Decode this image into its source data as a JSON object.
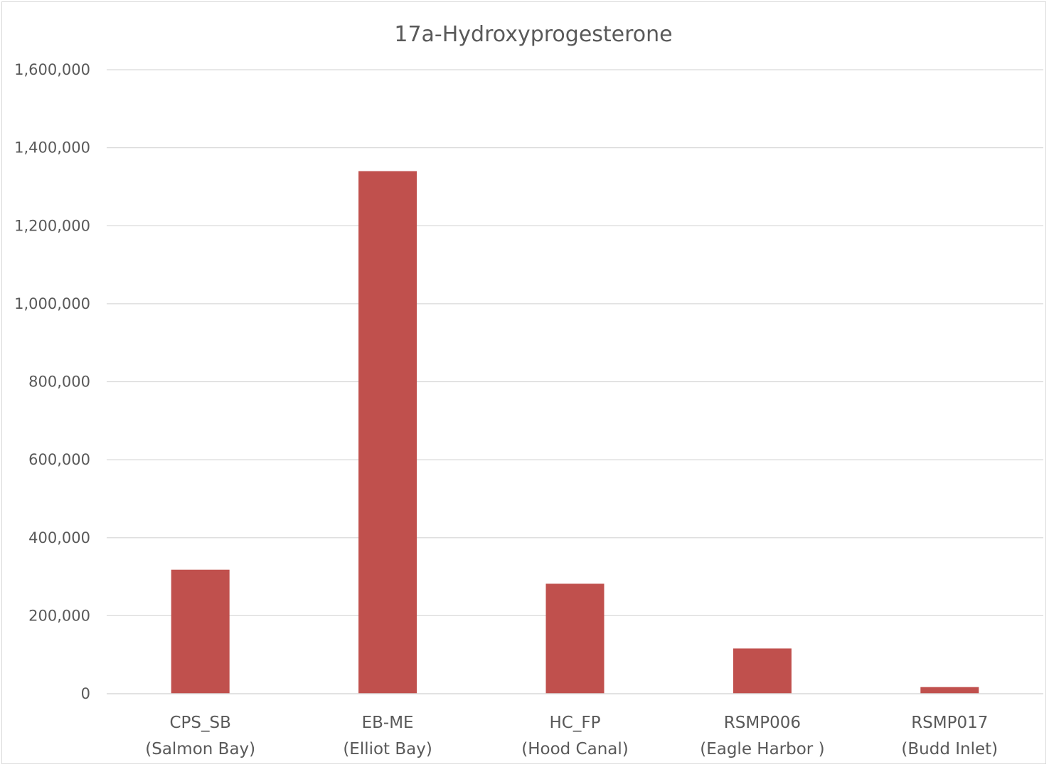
{
  "chart_data": {
    "type": "bar",
    "title": "17a-Hydroxyprogesterone",
    "xlabel": "",
    "ylabel": "",
    "categories": [
      [
        "CPS_SB",
        "(Salmon Bay)"
      ],
      [
        "EB-ME",
        "(Elliot Bay)"
      ],
      [
        "HC_FP",
        "(Hood Canal)"
      ],
      [
        "RSMP006",
        "(Eagle Harbor )"
      ],
      [
        "RSMP017",
        "(Budd Inlet)"
      ]
    ],
    "values": [
      318000,
      1340000,
      282000,
      116000,
      17000
    ],
    "ylim": [
      0,
      1600000
    ],
    "yticks": [
      0,
      200000,
      400000,
      600000,
      800000,
      1000000,
      1200000,
      1400000,
      1600000
    ],
    "ytick_labels": [
      "0",
      "200,000",
      "400,000",
      "600,000",
      "800,000",
      "1,000,000",
      "1,200,000",
      "1,400,000",
      "1,600,000"
    ],
    "grid": true,
    "legend": "none",
    "colors": {
      "bar": "#c0504d",
      "grid": "#d9d9d9",
      "text": "#595959",
      "border": "#d9d9d9"
    }
  }
}
